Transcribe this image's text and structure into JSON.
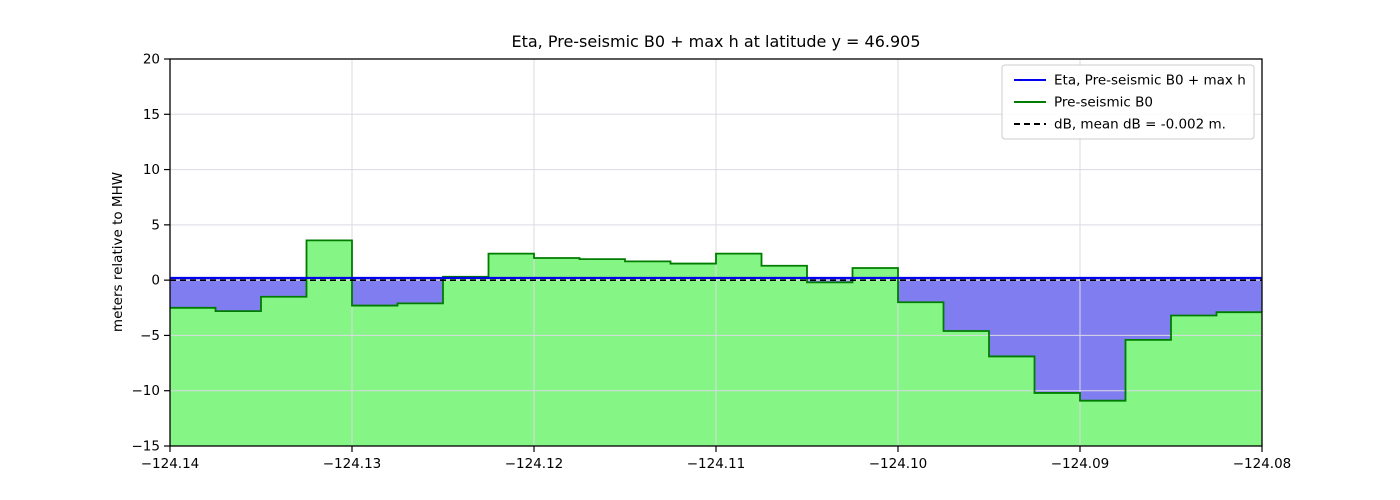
{
  "figure": {
    "title": "Eta, Pre-seismic B0 + max h at latitude y = 46.905",
    "ylabel": "meters relative to MHW"
  },
  "chart_data": {
    "type": "area",
    "title": "Eta, Pre-seismic B0 + max h at latitude y = 46.905",
    "xlabel": "",
    "ylabel": "meters relative to MHW",
    "xlim": [
      -124.14,
      -124.08
    ],
    "ylim": [
      -15,
      20
    ],
    "grid": true,
    "grid_color": "#dadae3",
    "xticks": {
      "values": [
        -124.14,
        -124.13,
        -124.12,
        -124.11,
        -124.1,
        -124.09,
        -124.08
      ],
      "labels": [
        "−124.14",
        "−124.13",
        "−124.12",
        "−124.11",
        "−124.10",
        "−124.09",
        "−124.08"
      ]
    },
    "yticks": {
      "values": [
        20,
        15,
        10,
        5,
        0,
        -5,
        -10,
        -15
      ],
      "labels": [
        "20",
        "15",
        "10",
        "5",
        "0",
        "−5",
        "−10",
        "−15"
      ]
    },
    "eta_line": {
      "label": "Eta, Pre-seismic B0 + max h",
      "value": 0.2,
      "color": "#0000ee",
      "style": "solid"
    },
    "b0_series": {
      "label": "Pre-seismic B0",
      "line_color": "#007c00",
      "fill_color": "#85f585",
      "step_edges": [
        -124.14,
        -124.1375,
        -124.135,
        -124.1325,
        -124.13,
        -124.1275,
        -124.125,
        -124.1225,
        -124.12,
        -124.1175,
        -124.115,
        -124.1125,
        -124.11,
        -124.1075,
        -124.105,
        -124.1025,
        -124.1,
        -124.0975,
        -124.095,
        -124.0925,
        -124.09,
        -124.0875,
        -124.085,
        -124.0825,
        -124.08
      ],
      "step_values": [
        -2.5,
        -2.8,
        -1.5,
        3.6,
        -2.3,
        -2.1,
        0.3,
        2.4,
        2.0,
        1.9,
        1.7,
        1.5,
        2.4,
        1.3,
        -0.2,
        1.1,
        -2.0,
        -4.6,
        -6.9,
        -10.2,
        -10.9,
        -5.4,
        -3.2,
        -2.9
      ]
    },
    "db_line": {
      "label": "dB, mean dB = -0.002 m.",
      "value": 0.0,
      "color": "#000000",
      "style": "dashed"
    },
    "water_fill_color": "#807df0",
    "legend": {
      "position": "upper right",
      "entries": [
        {
          "label": "Eta, Pre-seismic B0 + max h",
          "color": "#0000ee",
          "dash": false
        },
        {
          "label": "Pre-seismic B0",
          "color": "#007c00",
          "dash": false
        },
        {
          "label": "dB, mean dB = -0.002 m.",
          "color": "#000000",
          "dash": true
        }
      ]
    }
  }
}
